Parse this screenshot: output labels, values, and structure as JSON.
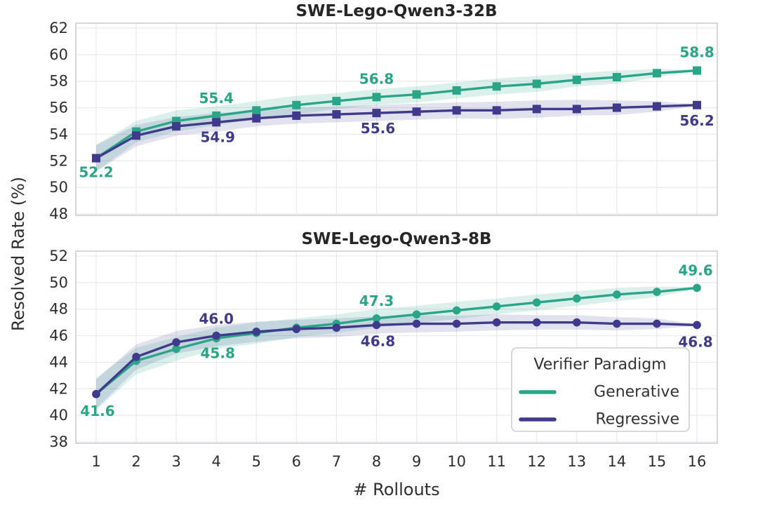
{
  "figure": {
    "ylabel": "Resolved Rate (%)",
    "xlabel": "# Rollouts",
    "background": "#ffffff",
    "grid_color": "#e9e9ed",
    "spine_color": "#cdcdd2",
    "tick_color": "#2e2e2e",
    "legend": {
      "title": "Verifier Paradigm",
      "entries": [
        {
          "label": "Generative",
          "color": "#2ba588"
        },
        {
          "label": "Regressive",
          "color": "#3f3a8c"
        }
      ]
    }
  },
  "chart_data": [
    {
      "type": "line",
      "title": "SWE-Lego-Qwen3-32B",
      "xlabel": "# Rollouts",
      "ylabel": "Resolved Rate (%)",
      "x": [
        1,
        2,
        3,
        4,
        5,
        6,
        7,
        8,
        9,
        10,
        11,
        12,
        13,
        14,
        15,
        16
      ],
      "ylim": [
        48,
        62
      ],
      "yticks": [
        48,
        50,
        52,
        54,
        56,
        58,
        60,
        62
      ],
      "grid": true,
      "marker": "square",
      "series": [
        {
          "name": "Generative",
          "color": "#2ba588",
          "band_color": "rgba(43,165,136,0.17)",
          "values": [
            52.2,
            54.2,
            55.0,
            55.4,
            55.8,
            56.2,
            56.5,
            56.8,
            57.0,
            57.3,
            57.6,
            57.8,
            58.1,
            58.3,
            58.6,
            58.8
          ],
          "band_upper": [
            53.2,
            55.0,
            55.8,
            56.1,
            56.5,
            56.9,
            57.1,
            57.4,
            57.6,
            57.9,
            58.2,
            58.4,
            58.6,
            58.8,
            58.9,
            58.85
          ],
          "band_lower": [
            51.2,
            53.4,
            54.2,
            54.7,
            55.1,
            55.5,
            55.9,
            56.2,
            56.4,
            56.7,
            57.0,
            57.2,
            57.6,
            57.8,
            58.3,
            58.75
          ],
          "annotations": [
            {
              "x": 1,
              "text": "52.2",
              "dx": 0,
              "dy": 20
            },
            {
              "x": 4,
              "text": "55.4",
              "dx": 0,
              "dy": -25
            },
            {
              "x": 8,
              "text": "56.8",
              "dx": 0,
              "dy": -26
            },
            {
              "x": 16,
              "text": "58.8",
              "dx": 0,
              "dy": -26
            }
          ]
        },
        {
          "name": "Regressive",
          "color": "#3f3a8c",
          "band_color": "rgba(63,58,140,0.15)",
          "values": [
            52.2,
            53.9,
            54.6,
            54.9,
            55.2,
            55.4,
            55.5,
            55.6,
            55.7,
            55.8,
            55.8,
            55.9,
            55.9,
            56.0,
            56.1,
            56.2
          ],
          "band_upper": [
            53.2,
            54.7,
            55.3,
            55.6,
            55.8,
            56.0,
            56.1,
            56.2,
            56.3,
            56.4,
            56.45,
            56.55,
            56.6,
            56.55,
            56.5,
            56.25
          ],
          "band_lower": [
            51.2,
            53.1,
            53.9,
            54.2,
            54.6,
            54.8,
            54.9,
            55.0,
            55.1,
            55.2,
            55.15,
            55.25,
            55.4,
            55.45,
            55.7,
            56.15
          ],
          "annotations": [
            {
              "x": 4,
              "text": "54.9",
              "dx": 2,
              "dy": 21
            },
            {
              "x": 8,
              "text": "55.6",
              "dx": 2,
              "dy": 22
            },
            {
              "x": 16,
              "text": "56.2",
              "dx": 0,
              "dy": 22
            }
          ]
        }
      ]
    },
    {
      "type": "line",
      "title": "SWE-Lego-Qwen3-8B",
      "xlabel": "# Rollouts",
      "ylabel": "Resolved Rate (%)",
      "x": [
        1,
        2,
        3,
        4,
        5,
        6,
        7,
        8,
        9,
        10,
        11,
        12,
        13,
        14,
        15,
        16
      ],
      "ylim": [
        38,
        52
      ],
      "yticks": [
        38,
        40,
        42,
        44,
        46,
        48,
        50,
        52
      ],
      "grid": true,
      "marker": "circle",
      "series": [
        {
          "name": "Generative",
          "color": "#2ba588",
          "band_color": "rgba(43,165,136,0.17)",
          "values": [
            41.6,
            44.1,
            45.0,
            45.8,
            46.2,
            46.6,
            46.9,
            47.3,
            47.6,
            47.9,
            48.2,
            48.5,
            48.8,
            49.1,
            49.3,
            49.6
          ],
          "band_upper": [
            42.8,
            45.1,
            45.9,
            46.6,
            47.0,
            47.3,
            47.6,
            48.0,
            48.25,
            48.55,
            48.8,
            49.1,
            49.35,
            49.6,
            49.7,
            49.65
          ],
          "band_lower": [
            40.4,
            43.1,
            44.1,
            45.0,
            45.4,
            45.9,
            46.2,
            46.6,
            46.95,
            47.25,
            47.6,
            47.9,
            48.25,
            48.6,
            48.9,
            49.55
          ],
          "annotations": [
            {
              "x": 1,
              "text": "41.6",
              "dx": 2,
              "dy": 24
            },
            {
              "x": 4,
              "text": "45.8",
              "dx": 2,
              "dy": 21
            },
            {
              "x": 8,
              "text": "47.3",
              "dx": 0,
              "dy": -25
            },
            {
              "x": 16,
              "text": "49.6",
              "dx": -2,
              "dy": -25
            }
          ]
        },
        {
          "name": "Regressive",
          "color": "#3f3a8c",
          "band_color": "rgba(63,58,140,0.15)",
          "values": [
            41.6,
            44.4,
            45.5,
            46.0,
            46.3,
            46.5,
            46.6,
            46.8,
            46.9,
            46.9,
            47.0,
            47.0,
            47.0,
            46.9,
            46.9,
            46.8
          ],
          "band_upper": [
            42.7,
            45.35,
            46.35,
            46.8,
            47.05,
            47.2,
            47.3,
            47.45,
            47.55,
            47.5,
            47.6,
            47.55,
            47.55,
            47.4,
            47.3,
            46.85
          ],
          "band_lower": [
            40.5,
            43.45,
            44.65,
            45.2,
            45.55,
            45.8,
            45.9,
            46.15,
            46.25,
            46.3,
            46.4,
            46.45,
            46.45,
            46.4,
            46.5,
            46.75
          ],
          "annotations": [
            {
              "x": 4,
              "text": "46.0",
              "dx": 0,
              "dy": -24
            },
            {
              "x": 8,
              "text": "46.8",
              "dx": 2,
              "dy": 23
            },
            {
              "x": 16,
              "text": "46.8",
              "dx": -2,
              "dy": 24
            }
          ]
        }
      ]
    }
  ]
}
